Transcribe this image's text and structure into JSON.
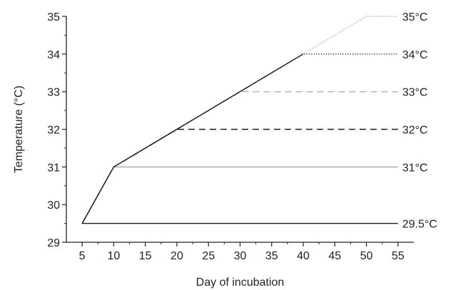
{
  "chart_data": {
    "type": "line",
    "title": "",
    "xlabel": "Day of incubation",
    "ylabel": "Temperature (°C)",
    "xlim": [
      2.5,
      57.5
    ],
    "ylim": [
      29,
      35
    ],
    "xticks": [
      5,
      10,
      15,
      20,
      25,
      30,
      35,
      40,
      45,
      50,
      55
    ],
    "yticks": [
      29,
      30,
      31,
      32,
      33,
      34,
      35
    ],
    "grid": false,
    "legend": "none",
    "series": [
      {
        "label": "29.5°C",
        "style": "solid",
        "color": "#1a1a1a",
        "points": [
          [
            5,
            29.5
          ],
          [
            55,
            29.5
          ]
        ]
      },
      {
        "label": "31°C",
        "style": "solid",
        "color": "#a8a8a8",
        "points": [
          [
            5,
            29.5
          ],
          [
            10,
            31
          ],
          [
            55,
            31
          ]
        ]
      },
      {
        "label": "32°C",
        "style": "dashed",
        "color": "#1a1a1a",
        "points": [
          [
            5,
            29.5
          ],
          [
            10,
            31
          ],
          [
            20,
            32
          ],
          [
            55,
            32
          ]
        ]
      },
      {
        "label": "33°C",
        "style": "dashed",
        "color": "#b0b0b0",
        "points": [
          [
            5,
            29.5
          ],
          [
            10,
            31
          ],
          [
            30,
            33
          ],
          [
            55,
            33
          ]
        ]
      },
      {
        "label": "34°C",
        "style": "dotted",
        "color": "#1a1a1a",
        "points": [
          [
            5,
            29.5
          ],
          [
            10,
            31
          ],
          [
            40,
            34
          ],
          [
            55,
            34
          ]
        ]
      },
      {
        "label": "35°C",
        "style": "dotted",
        "color": "#a0a0a0",
        "points": [
          [
            5,
            29.5
          ],
          [
            10,
            31
          ],
          [
            40,
            34
          ],
          [
            50,
            35
          ],
          [
            55,
            35
          ]
        ]
      }
    ]
  }
}
